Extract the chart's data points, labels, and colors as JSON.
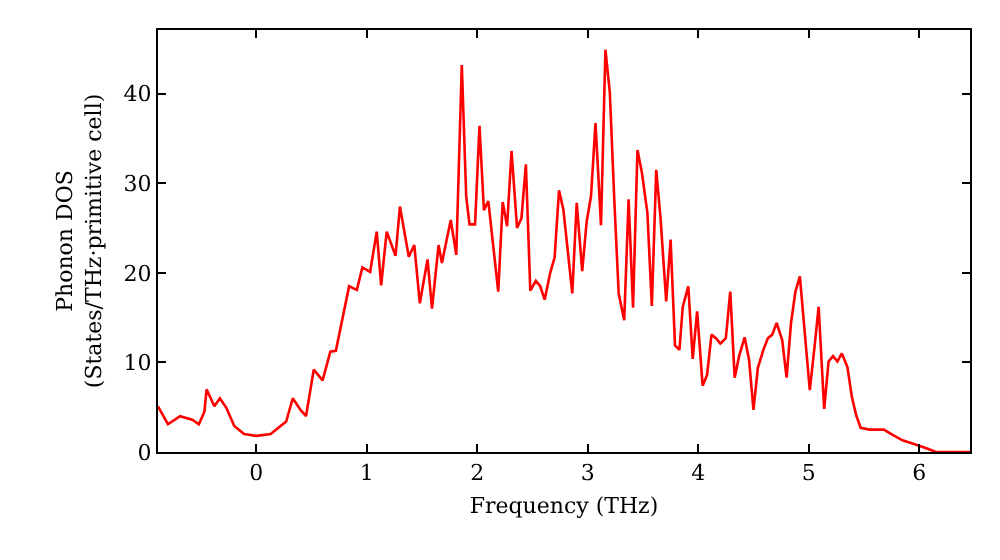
{
  "chart_data": {
    "type": "line",
    "xlabel": "Frequency (THz)",
    "ylabel": "Phonon DOS\n(States/THz·primitive cell)",
    "xlim": [
      -0.89,
      6.46
    ],
    "ylim": [
      0,
      47.1
    ],
    "xticks": [
      0,
      1,
      2,
      3,
      4,
      5,
      6
    ],
    "yticks": [
      0,
      10,
      20,
      30,
      40
    ],
    "marker": "none",
    "line_style": "solid",
    "series": [
      {
        "color": "#ff0000",
        "x": [
          -0.89,
          -0.8,
          -0.69,
          -0.58,
          -0.52,
          -0.47,
          -0.45,
          -0.38,
          -0.33,
          -0.27,
          -0.2,
          -0.11,
          0,
          0.13,
          0.2,
          0.27,
          0.33,
          0.4,
          0.45,
          0.52,
          0.6,
          0.67,
          0.72,
          0.84,
          0.91,
          0.96,
          1.03,
          1.09,
          1.13,
          1.18,
          1.26,
          1.3,
          1.38,
          1.43,
          1.48,
          1.55,
          1.59,
          1.65,
          1.68,
          1.76,
          1.81,
          1.86,
          1.9,
          1.93,
          1.98,
          2.02,
          2.06,
          2.1,
          2.19,
          2.23,
          2.27,
          2.31,
          2.36,
          2.4,
          2.44,
          2.48,
          2.53,
          2.57,
          2.61,
          2.66,
          2.7,
          2.74,
          2.78,
          2.86,
          2.9,
          2.95,
          2.99,
          3.03,
          3.07,
          3.12,
          3.16,
          3.2,
          3.24,
          3.28,
          3.33,
          3.37,
          3.41,
          3.45,
          3.49,
          3.54,
          3.58,
          3.62,
          3.66,
          3.71,
          3.75,
          3.79,
          3.83,
          3.86,
          3.91,
          3.95,
          3.99,
          4.04,
          4.08,
          4.12,
          4.16,
          4.2,
          4.25,
          4.29,
          4.33,
          4.37,
          4.42,
          4.46,
          4.5,
          4.54,
          4.59,
          4.63,
          4.67,
          4.71,
          4.76,
          4.8,
          4.84,
          4.88,
          4.92,
          4.97,
          5.01,
          5.05,
          5.09,
          5.14,
          5.18,
          5.22,
          5.26,
          5.3,
          5.35,
          5.39,
          5.43,
          5.47,
          5.55,
          5.68,
          5.76,
          5.85,
          6.0,
          6.09,
          6.15,
          6.46
        ],
        "values": [
          5.1,
          3.1,
          4.0,
          3.6,
          3.1,
          4.5,
          7.0,
          5.1,
          6.0,
          4.9,
          2.9,
          2.0,
          1.8,
          2.0,
          2.7,
          3.4,
          6.0,
          4.7,
          4.0,
          9.2,
          8.0,
          11.2,
          11.3,
          18.5,
          18.1,
          20.6,
          20.1,
          24.6,
          18.6,
          24.6,
          21.9,
          27.4,
          21.8,
          23.1,
          16.6,
          21.5,
          16.0,
          23.1,
          21.1,
          25.9,
          22.0,
          43.2,
          28.5,
          25.4,
          25.4,
          36.4,
          27.0,
          28.0,
          17.9,
          27.9,
          25.2,
          33.6,
          25.0,
          26.1,
          32.1,
          18.0,
          19.1,
          18.5,
          17.0,
          20.0,
          21.7,
          29.2,
          27.0,
          17.7,
          27.8,
          20.2,
          25.7,
          28.6,
          36.7,
          25.3,
          44.9,
          40.1,
          28.2,
          17.7,
          14.7,
          28.2,
          16.1,
          33.7,
          31.2,
          26.7,
          16.3,
          31.5,
          25.9,
          16.8,
          23.7,
          11.9,
          11.4,
          16.2,
          18.5,
          10.4,
          15.7,
          7.4,
          8.6,
          13.1,
          12.7,
          12.1,
          12.7,
          17.9,
          8.3,
          10.7,
          12.8,
          10.3,
          4.7,
          9.4,
          11.4,
          12.7,
          13.1,
          14.4,
          12.5,
          8.3,
          14.4,
          17.9,
          19.6,
          12.5,
          6.9,
          11.4,
          16.2,
          4.8,
          10.1,
          10.7,
          10.1,
          11.0,
          9.5,
          6.2,
          4.1,
          2.7,
          2.5,
          2.5,
          1.9,
          1.3,
          0.7,
          0.3,
          0,
          0
        ]
      }
    ]
  }
}
